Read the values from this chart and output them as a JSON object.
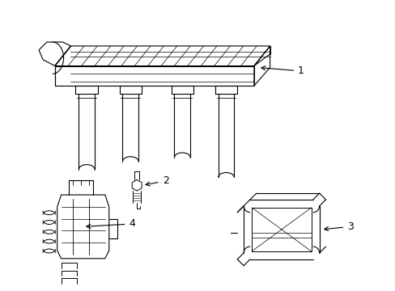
{
  "background_color": "#ffffff",
  "line_color": "#000000",
  "figure_width": 4.89,
  "figure_height": 3.6,
  "dpi": 100,
  "label_fontsize": 9
}
